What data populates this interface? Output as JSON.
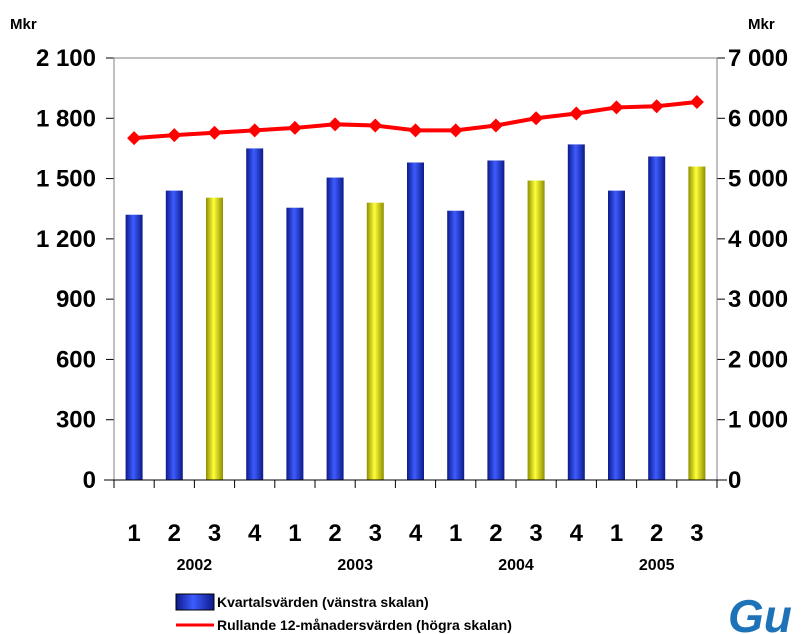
{
  "chart_data": {
    "type": "bar",
    "left_unit": "Mkr",
    "right_unit": "Mkr",
    "left_axis": {
      "min": 0,
      "max": 2100,
      "ticks": [
        0,
        300,
        600,
        900,
        1200,
        1500,
        1800,
        2100
      ],
      "tick_labels": [
        "0",
        "300",
        "600",
        "900",
        "1 200",
        "1 500",
        "1 800",
        "2 100"
      ]
    },
    "right_axis": {
      "min": 0,
      "max": 7000,
      "ticks": [
        0,
        1000,
        2000,
        3000,
        4000,
        5000,
        6000,
        7000
      ],
      "tick_labels": [
        "0",
        "1 000",
        "2 000",
        "3 000",
        "4 000",
        "5 000",
        "6 000",
        "7 000"
      ]
    },
    "categories": [
      "1",
      "2",
      "3",
      "4",
      "1",
      "2",
      "3",
      "4",
      "1",
      "2",
      "3",
      "4",
      "1",
      "2",
      "3"
    ],
    "years": [
      {
        "label": "2002",
        "start": 0,
        "end": 3
      },
      {
        "label": "2003",
        "start": 4,
        "end": 7
      },
      {
        "label": "2004",
        "start": 8,
        "end": 11
      },
      {
        "label": "2005",
        "start": 12,
        "end": 14
      }
    ],
    "series": [
      {
        "name": "Kvartalsvärden (vänstra skalan)",
        "kind": "bar",
        "axis": "left",
        "values": [
          1320,
          1440,
          1405,
          1650,
          1355,
          1505,
          1380,
          1580,
          1340,
          1590,
          1490,
          1670,
          1440,
          1610,
          1560
        ],
        "colors": [
          "blue",
          "blue",
          "yellow",
          "blue",
          "blue",
          "blue",
          "yellow",
          "blue",
          "blue",
          "blue",
          "yellow",
          "blue",
          "blue",
          "blue",
          "yellow"
        ]
      },
      {
        "name": "Rullande 12-månadersvärden (högra skalan)",
        "kind": "line",
        "axis": "right",
        "values": [
          5670,
          5720,
          5760,
          5800,
          5840,
          5900,
          5880,
          5800,
          5800,
          5880,
          6000,
          6080,
          6180,
          6200,
          6270
        ]
      }
    ],
    "palette": {
      "blue": "#2a44e0",
      "yellow": "#f2f200",
      "line": "#ff0000"
    },
    "legend_position": "bottom"
  },
  "logo_text": "Gu"
}
